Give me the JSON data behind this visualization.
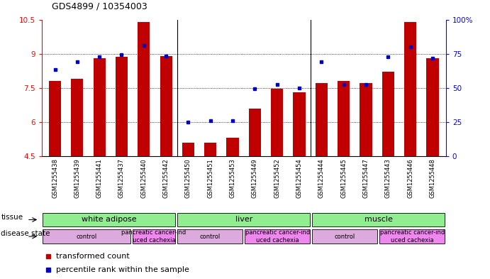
{
  "title": "GDS4899 / 10354003",
  "samples": [
    "GSM1255438",
    "GSM1255439",
    "GSM1255441",
    "GSM1255437",
    "GSM1255440",
    "GSM1255442",
    "GSM1255450",
    "GSM1255451",
    "GSM1255453",
    "GSM1255449",
    "GSM1255452",
    "GSM1255454",
    "GSM1255444",
    "GSM1255445",
    "GSM1255447",
    "GSM1255443",
    "GSM1255446",
    "GSM1255448"
  ],
  "red_values": [
    7.8,
    7.9,
    8.8,
    8.85,
    10.4,
    8.9,
    5.1,
    5.1,
    5.3,
    6.6,
    7.45,
    7.3,
    7.7,
    7.8,
    7.7,
    8.2,
    10.4,
    8.8
  ],
  "blue_values": [
    8.3,
    8.65,
    8.85,
    8.95,
    9.35,
    8.9,
    6.0,
    6.05,
    6.07,
    7.45,
    7.65,
    7.5,
    8.65,
    7.65,
    7.65,
    8.88,
    9.3,
    8.8
  ],
  "ylim_left": [
    4.5,
    10.5
  ],
  "ylim_right": [
    0,
    100
  ],
  "yticks_left": [
    4.5,
    6.0,
    7.5,
    9.0,
    10.5
  ],
  "yticks_right": [
    0,
    25,
    50,
    75,
    100
  ],
  "ytick_labels_left": [
    "4.5",
    "6",
    "7.5",
    "9",
    "10.5"
  ],
  "ytick_labels_right": [
    "0",
    "25",
    "50",
    "75",
    "100%"
  ],
  "bar_color": "#c00000",
  "dot_color": "#0000cc",
  "bg_color": "#ffffff",
  "tissue_groups": [
    {
      "label": "white adipose",
      "start": 0,
      "end": 6,
      "color": "#90ee90"
    },
    {
      "label": "liver",
      "start": 6,
      "end": 12,
      "color": "#90ee90"
    },
    {
      "label": "muscle",
      "start": 12,
      "end": 18,
      "color": "#90ee90"
    }
  ],
  "disease_groups": [
    {
      "label": "control",
      "start": 0,
      "end": 4,
      "color": "#ddaadd"
    },
    {
      "label": "pancreatic cancer-ind\nuced cachexia",
      "start": 4,
      "end": 6,
      "color": "#ee88ee"
    },
    {
      "label": "control",
      "start": 6,
      "end": 9,
      "color": "#ddaadd"
    },
    {
      "label": "pancreatic cancer-ind\nuced cachexia",
      "start": 9,
      "end": 12,
      "color": "#ee88ee"
    },
    {
      "label": "control",
      "start": 12,
      "end": 15,
      "color": "#ddaadd"
    },
    {
      "label": "pancreatic cancer-ind\nuced cachexia",
      "start": 15,
      "end": 18,
      "color": "#ee88ee"
    }
  ],
  "legend_items": [
    {
      "label": "transformed count",
      "color": "#c00000"
    },
    {
      "label": "percentile rank within the sample",
      "color": "#0000cc"
    }
  ],
  "grid_lines": [
    6.0,
    7.5,
    9.0
  ]
}
